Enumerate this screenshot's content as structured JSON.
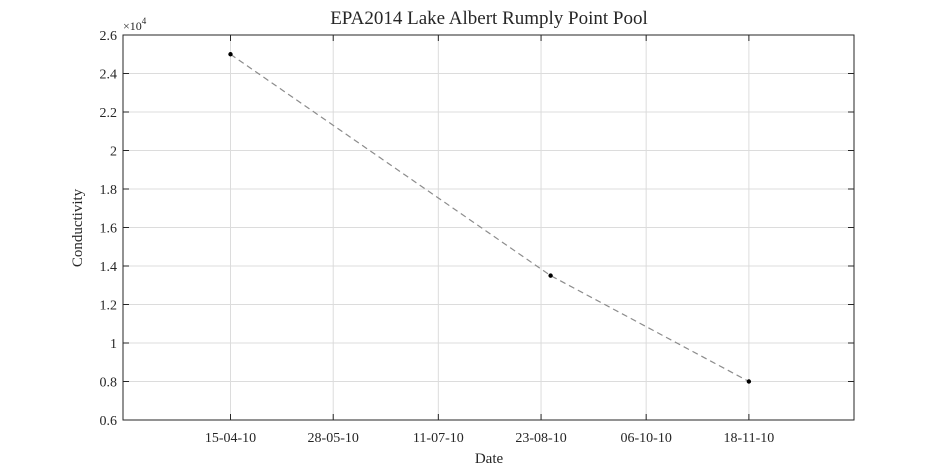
{
  "chart_data": {
    "type": "line",
    "title": "EPA2014 Lake Albert Rumply Point Pool",
    "xlabel": "Date",
    "ylabel": "Conductivity",
    "y_multiplier": "×10",
    "y_multiplier_exponent": "4",
    "xlim": [
      "2010-03-01",
      "2011-01-01"
    ],
    "ylim": [
      6000,
      26000
    ],
    "x_ticks": [
      {
        "date": "2010-04-15",
        "label": "15-04-10"
      },
      {
        "date": "2010-05-28",
        "label": "28-05-10"
      },
      {
        "date": "2010-07-11",
        "label": "11-07-10"
      },
      {
        "date": "2010-08-23",
        "label": "23-08-10"
      },
      {
        "date": "2010-10-06",
        "label": "06-10-10"
      },
      {
        "date": "2010-11-18",
        "label": "18-11-10"
      }
    ],
    "y_ticks": [
      {
        "value": 6000,
        "label": "0.6"
      },
      {
        "value": 8000,
        "label": "0.8"
      },
      {
        "value": 10000,
        "label": "1"
      },
      {
        "value": 12000,
        "label": "1.2"
      },
      {
        "value": 14000,
        "label": "1.4"
      },
      {
        "value": 16000,
        "label": "1.6"
      },
      {
        "value": 18000,
        "label": "1.8"
      },
      {
        "value": 20000,
        "label": "2"
      },
      {
        "value": 22000,
        "label": "2.2"
      },
      {
        "value": 24000,
        "label": "2.4"
      },
      {
        "value": 26000,
        "label": "2.6"
      }
    ],
    "grid": true,
    "series": [
      {
        "points": [
          {
            "x": "2010-04-15",
            "y": 25000
          },
          {
            "x": "2010-08-27",
            "y": 13500
          },
          {
            "x": "2010-11-18",
            "y": 8000
          }
        ],
        "line_style": "dashed",
        "line_color": "#8c8c8c",
        "marker_color": "#000000"
      }
    ]
  }
}
